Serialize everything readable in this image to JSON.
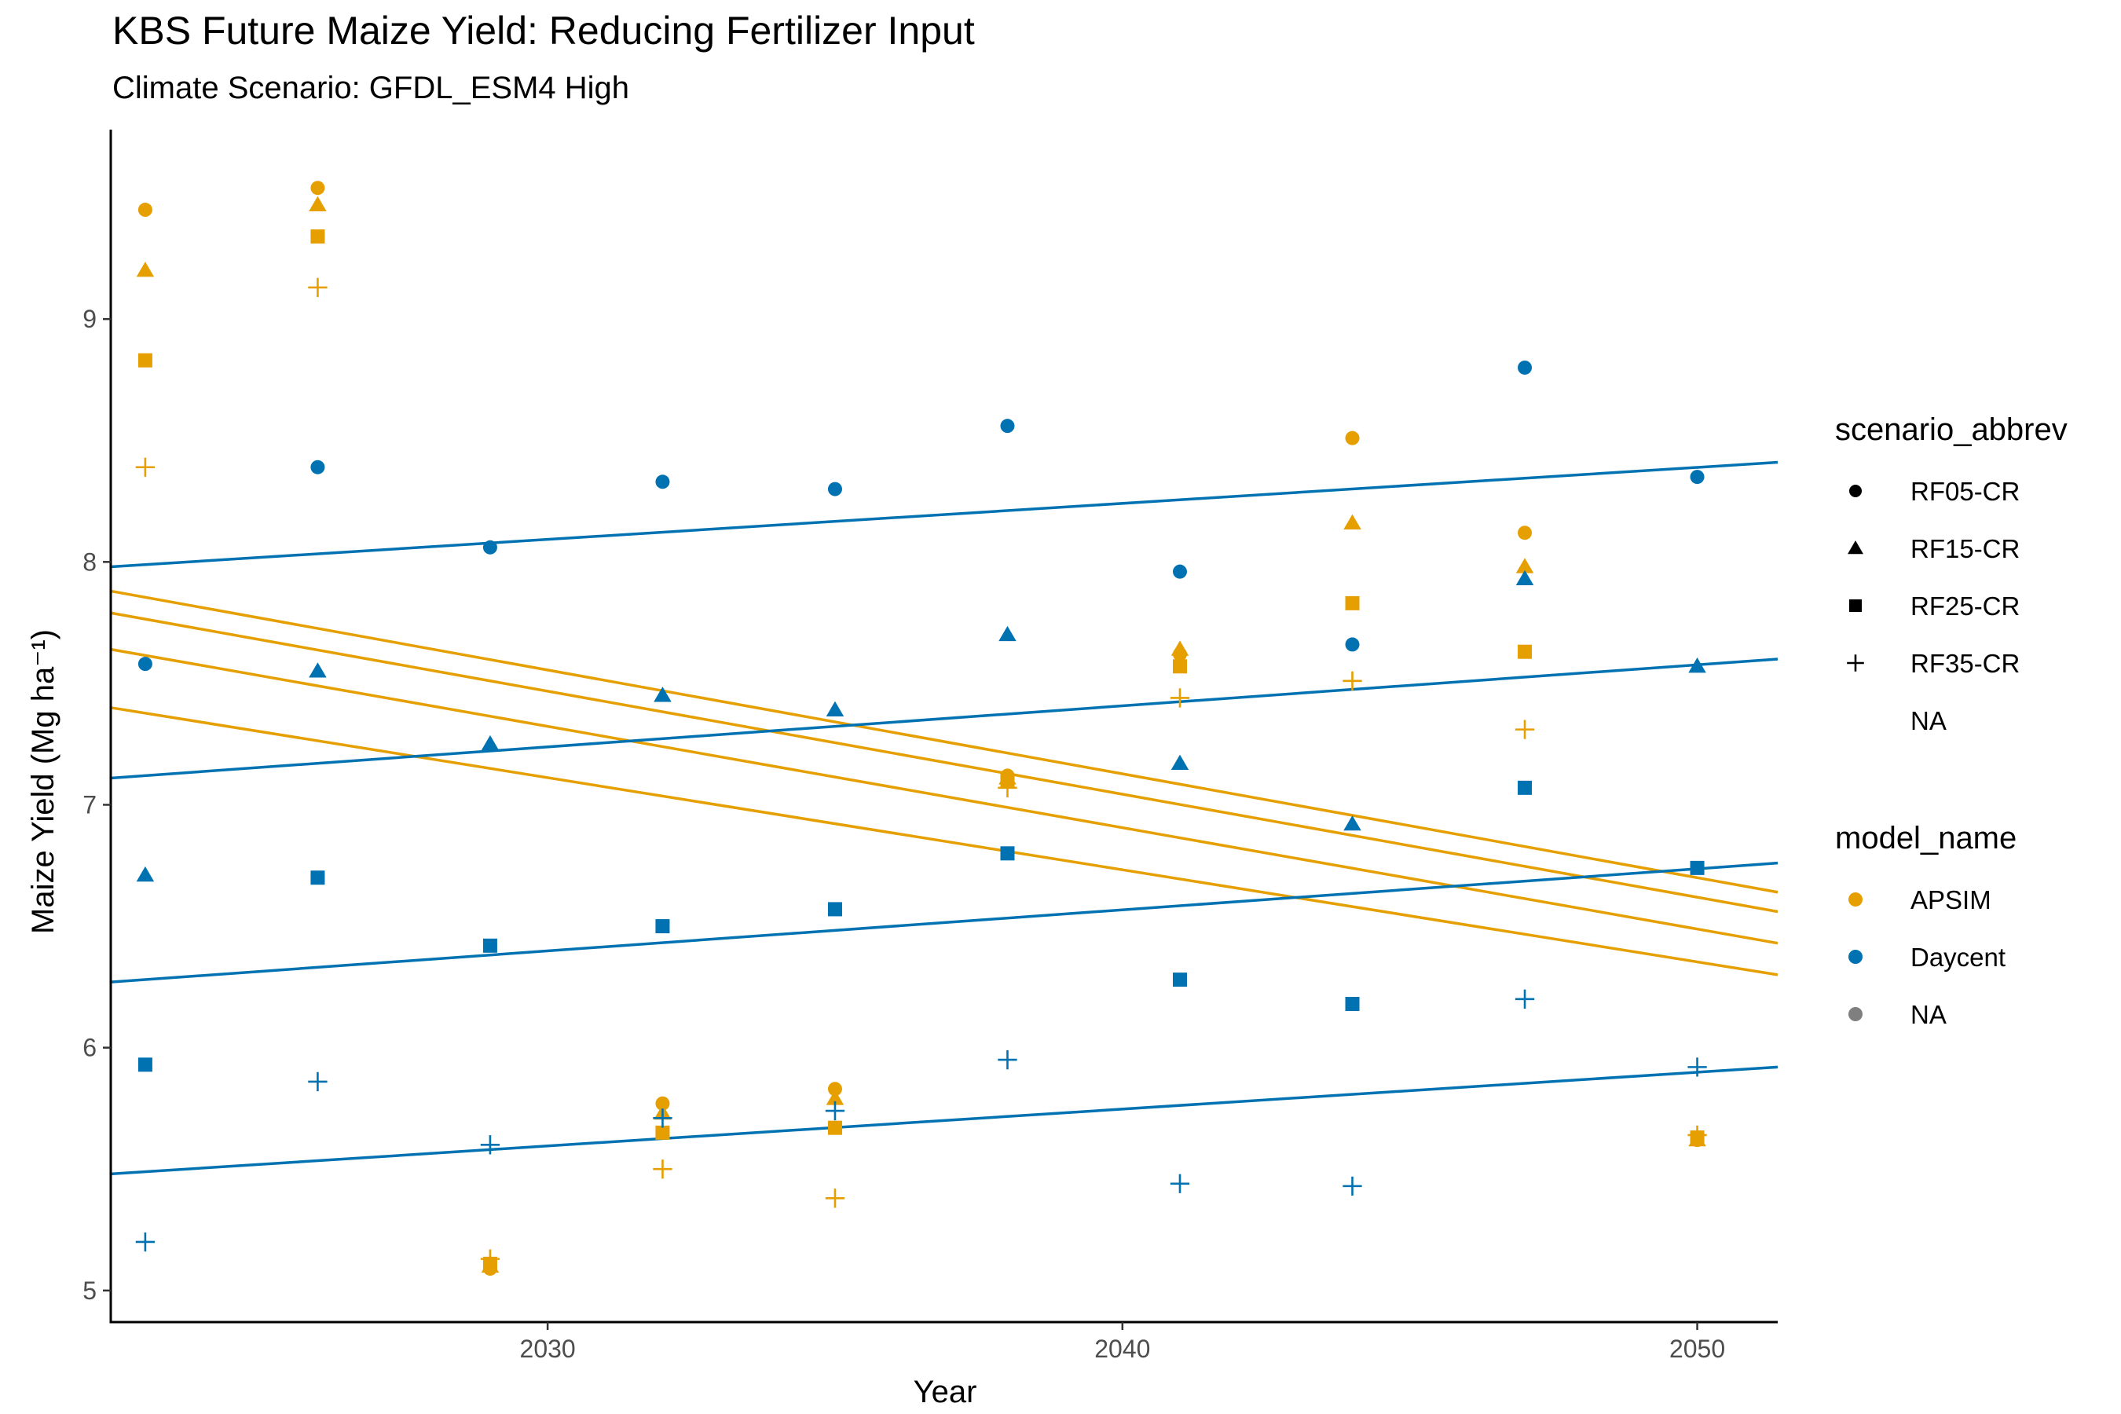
{
  "chart_data": {
    "type": "scatter",
    "title": "KBS Future Maize Yield: Reducing Fertilizer Input",
    "subtitle": "Climate Scenario: GFDL_ESM4 High",
    "xlabel": "Year",
    "ylabel": "Maize Yield (Mg ha⁻¹)",
    "xlim": [
      2022.4,
      2051.4
    ],
    "ylim": [
      4.87,
      9.78
    ],
    "x_ticks": [
      2030,
      2040,
      2050
    ],
    "y_ticks": [
      5,
      6,
      7,
      8,
      9
    ],
    "grid": false,
    "legend_position": "right",
    "colors": {
      "APSIM": "#E69F00",
      "Daycent": "#0072B2",
      "NA": "#7f7f7f"
    },
    "legend": {
      "scenario_title": "scenario_abbrev",
      "scenario_items": [
        "RF05-CR",
        "RF15-CR",
        "RF25-CR",
        "RF35-CR",
        "NA"
      ],
      "model_title": "model_name",
      "model_items": [
        "APSIM",
        "Daycent",
        "NA"
      ]
    },
    "series": [
      {
        "model": "APSIM",
        "scenario": "RF05-CR",
        "x": [
          2023,
          2026,
          2029,
          2032,
          2035,
          2038,
          2041,
          2044,
          2047,
          2050
        ],
        "y": [
          9.45,
          9.54,
          5.09,
          5.77,
          5.83,
          7.12,
          7.62,
          8.51,
          8.12,
          5.62
        ],
        "trend": [
          7.88,
          6.64
        ]
      },
      {
        "model": "APSIM",
        "scenario": "RF15-CR",
        "x": [
          2023,
          2026,
          2029,
          2032,
          2035,
          2038,
          2041,
          2044,
          2047,
          2050
        ],
        "y": [
          9.2,
          9.47,
          5.1,
          5.73,
          5.79,
          7.11,
          7.64,
          8.16,
          7.98,
          5.62
        ],
        "trend": [
          7.79,
          6.56
        ]
      },
      {
        "model": "APSIM",
        "scenario": "RF25-CR",
        "x": [
          2023,
          2026,
          2029,
          2032,
          2035,
          2038,
          2041,
          2044,
          2047,
          2050
        ],
        "y": [
          8.83,
          9.34,
          5.11,
          5.65,
          5.67,
          7.1,
          7.57,
          7.83,
          7.63,
          5.63
        ],
        "trend": [
          7.64,
          6.43
        ]
      },
      {
        "model": "APSIM",
        "scenario": "RF35-CR",
        "x": [
          2023,
          2026,
          2029,
          2032,
          2035,
          2038,
          2041,
          2044,
          2047,
          2050
        ],
        "y": [
          8.39,
          9.13,
          5.13,
          5.5,
          5.38,
          7.07,
          7.44,
          7.51,
          7.31,
          5.64
        ],
        "trend": [
          7.4,
          6.3
        ]
      },
      {
        "model": "Daycent",
        "scenario": "RF05-CR",
        "x": [
          2023,
          2026,
          2029,
          2032,
          2035,
          2038,
          2041,
          2044,
          2047,
          2050
        ],
        "y": [
          7.58,
          8.39,
          8.06,
          8.33,
          8.3,
          8.56,
          7.96,
          7.66,
          8.8,
          8.35
        ],
        "trend": [
          7.98,
          8.41
        ]
      },
      {
        "model": "Daycent",
        "scenario": "RF15-CR",
        "x": [
          2023,
          2026,
          2029,
          2032,
          2035,
          2038,
          2041,
          2044,
          2047,
          2050
        ],
        "y": [
          6.71,
          7.55,
          7.25,
          7.45,
          7.39,
          7.7,
          7.17,
          6.92,
          7.93,
          7.57
        ],
        "trend": [
          7.11,
          7.6
        ]
      },
      {
        "model": "Daycent",
        "scenario": "RF25-CR",
        "x": [
          2023,
          2026,
          2029,
          2032,
          2035,
          2038,
          2041,
          2044,
          2047,
          2050
        ],
        "y": [
          5.93,
          6.7,
          6.42,
          6.5,
          6.57,
          6.8,
          6.28,
          6.18,
          7.07,
          6.74
        ],
        "trend": [
          6.27,
          6.76
        ]
      },
      {
        "model": "Daycent",
        "scenario": "RF35-CR",
        "x": [
          2023,
          2026,
          2029,
          2032,
          2035,
          2038,
          2041,
          2044,
          2047,
          2050
        ],
        "y": [
          5.2,
          5.86,
          5.6,
          5.71,
          5.74,
          5.95,
          5.44,
          5.43,
          6.2,
          5.92
        ],
        "trend": [
          5.48,
          5.92
        ]
      }
    ]
  }
}
